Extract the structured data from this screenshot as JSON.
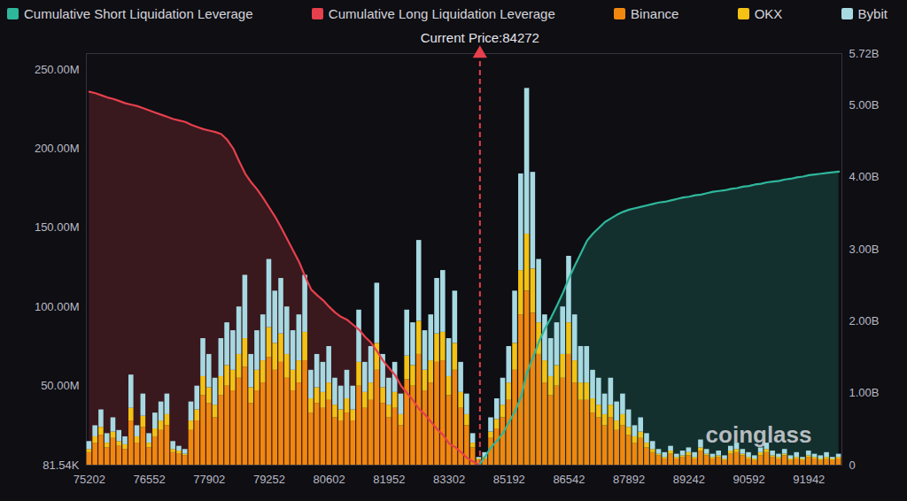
{
  "chart_data": {
    "type": "bar",
    "stacked": true,
    "grid": false,
    "legend": "top",
    "categories": [
      "75202",
      null,
      null,
      null,
      null,
      null,
      null,
      null,
      null,
      null,
      "76552",
      null,
      null,
      null,
      null,
      null,
      null,
      null,
      null,
      null,
      "77902",
      null,
      null,
      null,
      null,
      null,
      null,
      null,
      null,
      null,
      "79252",
      null,
      null,
      null,
      null,
      null,
      null,
      null,
      null,
      null,
      "80602",
      null,
      null,
      null,
      null,
      null,
      null,
      null,
      null,
      null,
      "81952",
      null,
      null,
      null,
      null,
      null,
      null,
      null,
      null,
      null,
      "83302",
      null,
      null,
      null,
      null,
      null,
      null,
      null,
      null,
      null,
      "85192",
      null,
      null,
      null,
      null,
      null,
      null,
      null,
      null,
      null,
      "86542",
      null,
      null,
      null,
      null,
      null,
      null,
      null,
      null,
      null,
      "87892",
      null,
      null,
      null,
      null,
      null,
      null,
      null,
      null,
      null,
      "89242",
      null,
      null,
      null,
      null,
      null,
      null,
      null,
      null,
      null,
      "90592",
      null,
      null,
      null,
      null,
      null,
      null,
      null,
      null,
      null,
      "91942",
      null,
      null,
      null,
      null,
      null
    ],
    "ylim": [
      0.08154,
      260
    ],
    "yticks": [
      {
        "value": 0.08154,
        "label": "81.54K"
      },
      {
        "value": 50,
        "label": "50.00M"
      },
      {
        "value": 100,
        "label": "100.00M"
      },
      {
        "value": 150,
        "label": "150.00M"
      },
      {
        "value": 200,
        "label": "200.00M"
      },
      {
        "value": 250,
        "label": "250.00M"
      }
    ],
    "y2lim": [
      0,
      5.72
    ],
    "y2ticks": [
      0,
      {
        "value": 1,
        "label": "1.00B"
      },
      {
        "value": 2,
        "label": "2.00B"
      },
      {
        "value": 3,
        "label": "3.00B"
      },
      {
        "value": 4,
        "label": "4.00B"
      },
      {
        "value": 5,
        "label": "5.00B"
      },
      {
        "value": 5.72,
        "label": "5.72B"
      }
    ],
    "series": [
      {
        "name": "Cumulative Short Liquidation Leverage",
        "type": "area",
        "axis": "y2",
        "color": "#2fb79b",
        "values": [
          null,
          null,
          null,
          null,
          null,
          null,
          null,
          null,
          null,
          null,
          null,
          null,
          null,
          null,
          null,
          null,
          null,
          null,
          null,
          null,
          null,
          null,
          null,
          null,
          null,
          null,
          null,
          null,
          null,
          null,
          null,
          null,
          null,
          null,
          null,
          null,
          null,
          null,
          null,
          null,
          null,
          null,
          null,
          null,
          null,
          null,
          null,
          null,
          null,
          null,
          null,
          null,
          null,
          null,
          null,
          null,
          null,
          null,
          null,
          null,
          null,
          null,
          null,
          null,
          null,
          0,
          0.12,
          0.25,
          0.34,
          0.45,
          0.6,
          0.75,
          0.95,
          1.29,
          1.5,
          1.72,
          1.9,
          2.05,
          2.22,
          2.4,
          2.6,
          2.78,
          2.95,
          3.12,
          3.22,
          3.3,
          3.38,
          3.43,
          3.48,
          3.52,
          3.55,
          3.57,
          3.59,
          3.61,
          3.63,
          3.65,
          3.66,
          3.68,
          3.7,
          3.72,
          3.73,
          3.75,
          3.76,
          3.78,
          3.8,
          3.81,
          3.82,
          3.84,
          3.85,
          3.87,
          3.88,
          3.9,
          3.91,
          3.93,
          3.94,
          3.95,
          3.97,
          3.98,
          4.0,
          4.01,
          4.03,
          4.04,
          4.05,
          4.06,
          4.07,
          4.08
        ]
      },
      {
        "name": "Cumulative Long Liquidation Leverage",
        "type": "area",
        "axis": "y2",
        "color": "#e5404c",
        "values": [
          5.19,
          5.17,
          5.14,
          5.11,
          5.09,
          5.06,
          5.03,
          5.01,
          4.99,
          4.96,
          4.93,
          4.9,
          4.87,
          4.84,
          4.81,
          4.79,
          4.77,
          4.73,
          4.7,
          4.67,
          4.65,
          4.63,
          4.6,
          4.52,
          4.4,
          4.22,
          4.05,
          3.93,
          3.83,
          3.71,
          3.58,
          3.45,
          3.3,
          3.14,
          2.98,
          2.82,
          2.62,
          2.44,
          2.36,
          2.29,
          2.2,
          2.12,
          2.06,
          2.02,
          1.95,
          1.88,
          1.78,
          1.7,
          1.58,
          1.45,
          1.35,
          1.25,
          1.1,
          1.0,
          0.9,
          0.78,
          0.7,
          0.6,
          0.5,
          0.42,
          0.3,
          0.25,
          0.18,
          0.1,
          0.05,
          0,
          null,
          null,
          null,
          null,
          null,
          null,
          null,
          null,
          null,
          null,
          null,
          null,
          null,
          null,
          null,
          null,
          null,
          null,
          null,
          null,
          null,
          null,
          null,
          null,
          null,
          null,
          null,
          null,
          null,
          null,
          null,
          null,
          null,
          null,
          null,
          null,
          null,
          null,
          null,
          null,
          null,
          null,
          null,
          null,
          null,
          null,
          null,
          null,
          null,
          null,
          null,
          null,
          null,
          null,
          null,
          null,
          null,
          null,
          null,
          null
        ]
      },
      {
        "name": "Binance",
        "type": "bar",
        "color": "#f0870e",
        "values": [
          8,
          14,
          19,
          11,
          17,
          12,
          10,
          28,
          14,
          24,
          11,
          18,
          22,
          25,
          8,
          7,
          6,
          22,
          28,
          44,
          39,
          30,
          44,
          50,
          47,
          55,
          62,
          39,
          47,
          52,
          68,
          60,
          65,
          55,
          47,
          52,
          66,
          33,
          39,
          36,
          41,
          30,
          28,
          33,
          28,
          50,
          36,
          41,
          60,
          39,
          30,
          36,
          25,
          54,
          50,
          70,
          47,
          52,
          65,
          66,
          44,
          60,
          36,
          25,
          11,
          3,
          4,
          17,
          23,
          30,
          41,
          60,
          95,
          110,
          96,
          70,
          52,
          44,
          50,
          55,
          70,
          52,
          41,
          41,
          33,
          30,
          25,
          30,
          22,
          25,
          19,
          14,
          17,
          11,
          8,
          6,
          4,
          7,
          4,
          5,
          6,
          4,
          9,
          6,
          4,
          5,
          3,
          7,
          8,
          6,
          4,
          3,
          6,
          8,
          5,
          4,
          6,
          3,
          4,
          3,
          5,
          4,
          3,
          4,
          3,
          4
        ]
      },
      {
        "name": "OKX",
        "type": "bar",
        "color": "#f3c214",
        "values": [
          2,
          4,
          5,
          3,
          4,
          3,
          3,
          8,
          4,
          7,
          3,
          5,
          6,
          7,
          2,
          2,
          1,
          6,
          7,
          12,
          10,
          8,
          12,
          13,
          13,
          15,
          18,
          10,
          13,
          14,
          19,
          17,
          18,
          15,
          13,
          14,
          18,
          9,
          10,
          10,
          11,
          8,
          7,
          9,
          7,
          15,
          10,
          11,
          17,
          10,
          8,
          10,
          7,
          15,
          13,
          21,
          13,
          14,
          18,
          18,
          12,
          17,
          10,
          7,
          3,
          1,
          1,
          4,
          6,
          8,
          11,
          17,
          28,
          36,
          28,
          20,
          14,
          12,
          13,
          15,
          20,
          14,
          11,
          11,
          9,
          8,
          7,
          8,
          6,
          7,
          5,
          4,
          4,
          3,
          2,
          1,
          1,
          2,
          1,
          1,
          2,
          1,
          2,
          1,
          1,
          1,
          1,
          2,
          2,
          1,
          1,
          1,
          2,
          2,
          1,
          1,
          1,
          1,
          1,
          1,
          1,
          1,
          1,
          1,
          1,
          1
        ]
      },
      {
        "name": "Bybit",
        "type": "bar",
        "color": "#a7d9e2",
        "values": [
          5,
          7,
          11,
          6,
          9,
          7,
          5,
          21,
          7,
          14,
          6,
          10,
          12,
          13,
          5,
          3,
          3,
          12,
          15,
          24,
          21,
          17,
          24,
          27,
          25,
          30,
          40,
          21,
          25,
          29,
          43,
          33,
          35,
          30,
          25,
          29,
          36,
          18,
          21,
          19,
          23,
          17,
          15,
          18,
          15,
          33,
          19,
          23,
          38,
          21,
          17,
          19,
          13,
          29,
          27,
          51,
          25,
          29,
          35,
          39,
          24,
          33,
          19,
          13,
          6,
          1,
          3,
          9,
          13,
          17,
          23,
          33,
          61,
          92,
          61,
          40,
          29,
          24,
          27,
          30,
          42,
          29,
          23,
          23,
          18,
          17,
          13,
          17,
          12,
          13,
          11,
          7,
          9,
          6,
          5,
          3,
          3,
          3,
          2,
          3,
          3,
          3,
          5,
          3,
          2,
          3,
          2,
          3,
          4,
          3,
          3,
          2,
          3,
          4,
          3,
          2,
          3,
          2,
          3,
          1,
          3,
          2,
          2,
          3,
          1,
          2
        ]
      }
    ],
    "annotations": [
      {
        "text": "Current Price:84272",
        "value": 84272
      },
      {
        "text": "coinglass"
      }
    ]
  }
}
